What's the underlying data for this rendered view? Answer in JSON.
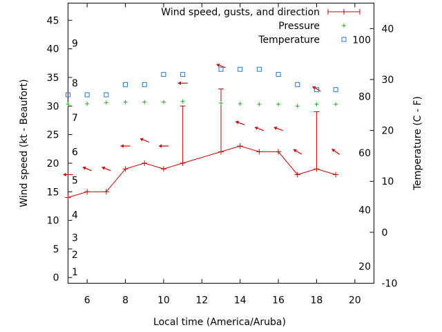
{
  "chart_data": {
    "type": "line",
    "xlabel": "Local time (America/Aruba)",
    "ylabel_left": "Wind speed (kt - Beaufort)",
    "ylabel_right": "Temperature (C - F)",
    "xlim": [
      5,
      21
    ],
    "ylim_left": [
      -1,
      48
    ],
    "ylim_right": [
      -10,
      45
    ],
    "x_ticks": [
      6,
      8,
      10,
      12,
      14,
      16,
      18,
      20
    ],
    "y_left_ticks": [
      0,
      5,
      10,
      15,
      20,
      25,
      30,
      35,
      40,
      45
    ],
    "y_right_ticks": [
      -10,
      0,
      10,
      20,
      30,
      40
    ],
    "beaufort_labels": [
      {
        "text": "1",
        "kt": 1
      },
      {
        "text": "2",
        "kt": 4
      },
      {
        "text": "3",
        "kt": 7
      },
      {
        "text": "4",
        "kt": 11
      },
      {
        "text": "5",
        "kt": 17
      },
      {
        "text": "6",
        "kt": 22
      },
      {
        "text": "7",
        "kt": 28
      },
      {
        "text": "8",
        "kt": 34
      },
      {
        "text": "9",
        "kt": 41
      }
    ],
    "fahrenheit_labels": [
      {
        "text": "20",
        "c": -6.7
      },
      {
        "text": "40",
        "c": 4.4
      },
      {
        "text": "60",
        "c": 15.6
      },
      {
        "text": "80",
        "c": 26.7
      },
      {
        "text": "100",
        "c": 37.8
      }
    ],
    "legend": [
      {
        "label": "Wind speed, gusts, and direction",
        "color": "#cc0000"
      },
      {
        "label": "Pressure",
        "color": "#22aa22"
      },
      {
        "label": "Temperature",
        "color": "#2277cc"
      }
    ],
    "series": [
      {
        "name": "Wind speed",
        "color": "#cc0000",
        "x": [
          5,
          6,
          7,
          8,
          9,
          10,
          11,
          13,
          14,
          15,
          16,
          17,
          18,
          19
        ],
        "values": [
          14,
          15,
          15,
          19,
          20,
          19,
          20,
          22,
          23,
          22,
          22,
          18,
          19,
          18
        ],
        "gusts": [
          null,
          null,
          null,
          null,
          null,
          null,
          30,
          33,
          null,
          null,
          null,
          null,
          29,
          null
        ]
      },
      {
        "name": "Wind direction",
        "color": "#cc0000",
        "x": [
          5,
          6,
          7,
          8,
          9,
          10,
          11,
          13,
          14,
          15,
          16,
          17,
          18,
          19
        ],
        "y": [
          18,
          19,
          19,
          23,
          24,
          23,
          34,
          37,
          27,
          26,
          26,
          22,
          33,
          22
        ],
        "angles": [
          180,
          158,
          158,
          180,
          158,
          180,
          180,
          160,
          160,
          160,
          160,
          150,
          150,
          145
        ]
      },
      {
        "name": "Pressure",
        "color": "#22aa22",
        "x": [
          5,
          6,
          7,
          8,
          9,
          10,
          11,
          13,
          14,
          15,
          16,
          17,
          18,
          19
        ],
        "values": [
          30.3,
          30.4,
          30.6,
          30.7,
          30.7,
          30.7,
          30.8,
          30.5,
          30.4,
          30.3,
          30.3,
          30.0,
          30.3,
          30.3
        ]
      },
      {
        "name": "Temperature",
        "color": "#2277cc",
        "x": [
          5,
          6,
          7,
          8,
          9,
          10,
          11,
          13,
          14,
          15,
          16,
          17,
          18,
          19
        ],
        "values": [
          27,
          27,
          27,
          29,
          29,
          31,
          31,
          32,
          32,
          32,
          31,
          29,
          28,
          28
        ]
      }
    ]
  }
}
